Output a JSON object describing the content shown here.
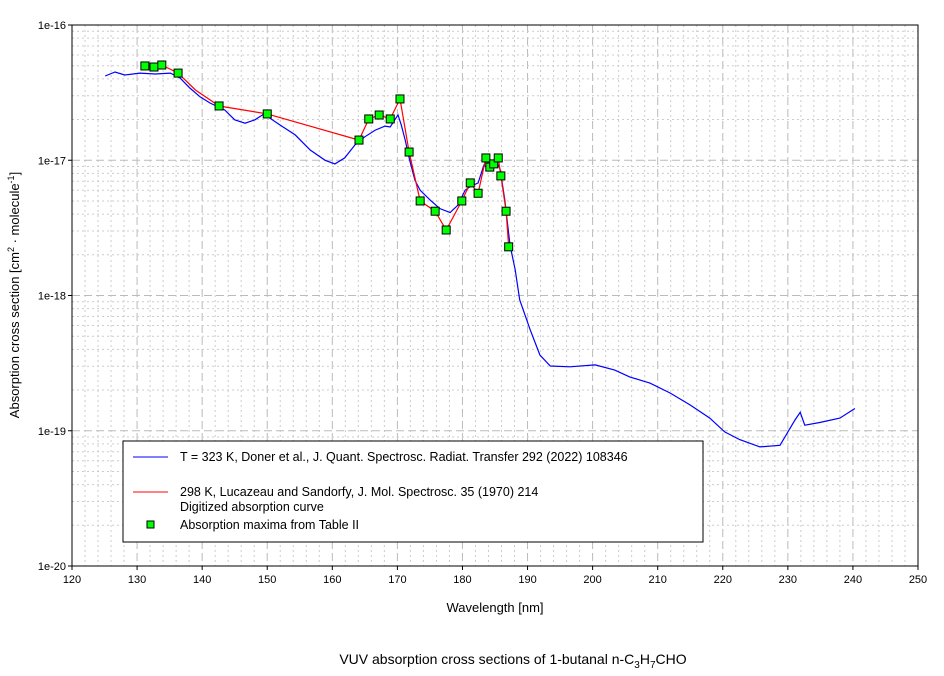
{
  "chart_data": {
    "type": "line",
    "title": {
      "pre": "VUV absorption cross sections of 1-butanal n-C",
      "s1": "3",
      "m1": "H",
      "s2": "7",
      "post": "CHO"
    },
    "xlabel": "Wavelength [nm]",
    "ylabel": {
      "pre": "Absorption cross section [cm",
      "sup1": "2",
      "mid": " · molecule",
      "sup2": "-1",
      "post": "]"
    },
    "xlim": [
      120,
      250
    ],
    "ylim": [
      1e-20,
      1e-16
    ],
    "yscale": "log",
    "grid": true,
    "xticks": [
      "120",
      "130",
      "140",
      "150",
      "160",
      "170",
      "180",
      "190",
      "200",
      "210",
      "220",
      "230",
      "240",
      "250"
    ],
    "yticks": [
      "1e-16",
      "1e-17",
      "1e-18",
      "1e-19",
      "1e-20"
    ],
    "legend": {
      "placement": "bottom-left",
      "entries": [
        "T = 323 K, Doner et al., J. Quant. Spectrosc. Radiat. Transfer 292 (2022) 108346",
        "298 K, Lucazeau and Sandorfy, J. Mol. Spectrosc. 35 (1970) 214",
        "Digitized absorption curve",
        "Absorption maxima from Table II"
      ]
    },
    "series": [
      {
        "name": "T = 323 K, Doner et al.",
        "color": "#0000ff",
        "style": "line",
        "x": [
          125.1,
          126.6,
          128.1,
          130.4,
          132.8,
          135.1,
          136.6,
          138.1,
          139.7,
          141.2,
          143.5,
          145.0,
          146.6,
          148.1,
          149.7,
          150.4,
          152.0,
          154.3,
          156.6,
          158.9,
          160.4,
          161.9,
          163.5,
          165.0,
          166.6,
          168.1,
          168.9,
          169.6,
          170.1,
          170.6,
          171.2,
          171.9,
          172.7,
          173.5,
          175.0,
          176.5,
          178.1,
          179.3,
          180.4,
          181.2,
          182.4,
          183.3,
          184.2,
          185.0,
          185.8,
          186.5,
          187.3,
          188.1,
          188.8,
          190.4,
          191.9,
          193.5,
          196.5,
          200.4,
          203.4,
          205.7,
          208.8,
          211.9,
          215.0,
          218.0,
          220.3,
          222.6,
          225.7,
          228.8,
          231.1,
          231.9,
          232.6,
          234.9,
          238.0,
          240.3
        ],
        "y": [
          4.2e-17,
          4.49e-17,
          4.27e-17,
          4.41e-17,
          4.34e-17,
          4.41e-17,
          4.06e-17,
          3.42e-17,
          2.94e-17,
          2.65e-17,
          2.35e-17,
          1.99e-17,
          1.88e-17,
          1.99e-17,
          2.23e-17,
          2.05e-17,
          1.82e-17,
          1.54e-17,
          1.19e-17,
          1e-17,
          9.4e-18,
          1.04e-17,
          1.3e-17,
          1.49e-17,
          1.67e-17,
          1.79e-17,
          1.76e-17,
          1.99e-17,
          2.16e-17,
          1.82e-17,
          1.41e-17,
          1e-17,
          7.1e-18,
          6e-18,
          5.1e-18,
          4.4e-18,
          4.1e-18,
          4.65e-18,
          6e-18,
          6.4e-18,
          6.8e-18,
          9.2e-18,
          8.5e-18,
          1.04e-17,
          8.5e-18,
          5.1e-18,
          2.36e-18,
          1.55e-18,
          9.3e-19,
          5.6e-19,
          3.63e-19,
          3.01e-19,
          2.97e-19,
          3.07e-19,
          2.81e-19,
          2.5e-19,
          2.25e-19,
          1.9e-19,
          1.55e-19,
          1.24e-19,
          9.8e-20,
          8.6e-20,
          7.6e-20,
          7.8e-20,
          1.2e-19,
          1.37e-19,
          1.1e-19,
          1.15e-19,
          1.24e-19,
          1.46e-19
        ]
      },
      {
        "name": "Digitized absorption curve",
        "color": "#ff0000",
        "style": "line",
        "x": [
          131.2,
          132.6,
          133.8,
          136.3,
          139.0,
          142.6,
          150.0,
          164.1,
          165.6,
          167.2,
          168.9,
          170.4,
          171.8,
          173.5,
          175.8,
          177.5,
          179.9,
          181.2,
          182.4,
          183.6,
          184.2,
          184.8,
          185.5,
          185.9,
          186.7,
          187.1
        ],
        "y": [
          4.98e-17,
          4.89e-17,
          5.06e-17,
          4.41e-17,
          3.3e-17,
          2.52e-17,
          2.2e-17,
          1.41e-17,
          2.02e-17,
          2.16e-17,
          2.02e-17,
          2.84e-17,
          1.15e-17,
          5e-18,
          4.2e-18,
          3.05e-18,
          5e-18,
          6.8e-18,
          5.7e-18,
          1.04e-17,
          8.9e-18,
          9.4e-18,
          1.04e-17,
          7.66e-18,
          4.2e-18,
          2.29e-18
        ]
      },
      {
        "name": "Absorption maxima from Table II",
        "color": "#00ff00",
        "style": "marker",
        "x": [
          131.2,
          132.6,
          133.8,
          136.3,
          142.6,
          150.0,
          164.1,
          165.6,
          167.2,
          168.9,
          170.4,
          171.8,
          173.5,
          175.8,
          177.5,
          179.9,
          181.2,
          182.4,
          183.6,
          184.2,
          184.8,
          185.5,
          185.9,
          186.7,
          187.1
        ],
        "y": [
          4.98e-17,
          4.89e-17,
          5.06e-17,
          4.41e-17,
          2.52e-17,
          2.2e-17,
          1.41e-17,
          2.02e-17,
          2.16e-17,
          2.02e-17,
          2.84e-17,
          1.15e-17,
          5e-18,
          4.2e-18,
          3.05e-18,
          5e-18,
          6.8e-18,
          5.7e-18,
          1.04e-17,
          8.9e-18,
          9.4e-18,
          1.04e-17,
          7.66e-18,
          4.2e-18,
          2.29e-18
        ]
      }
    ]
  }
}
